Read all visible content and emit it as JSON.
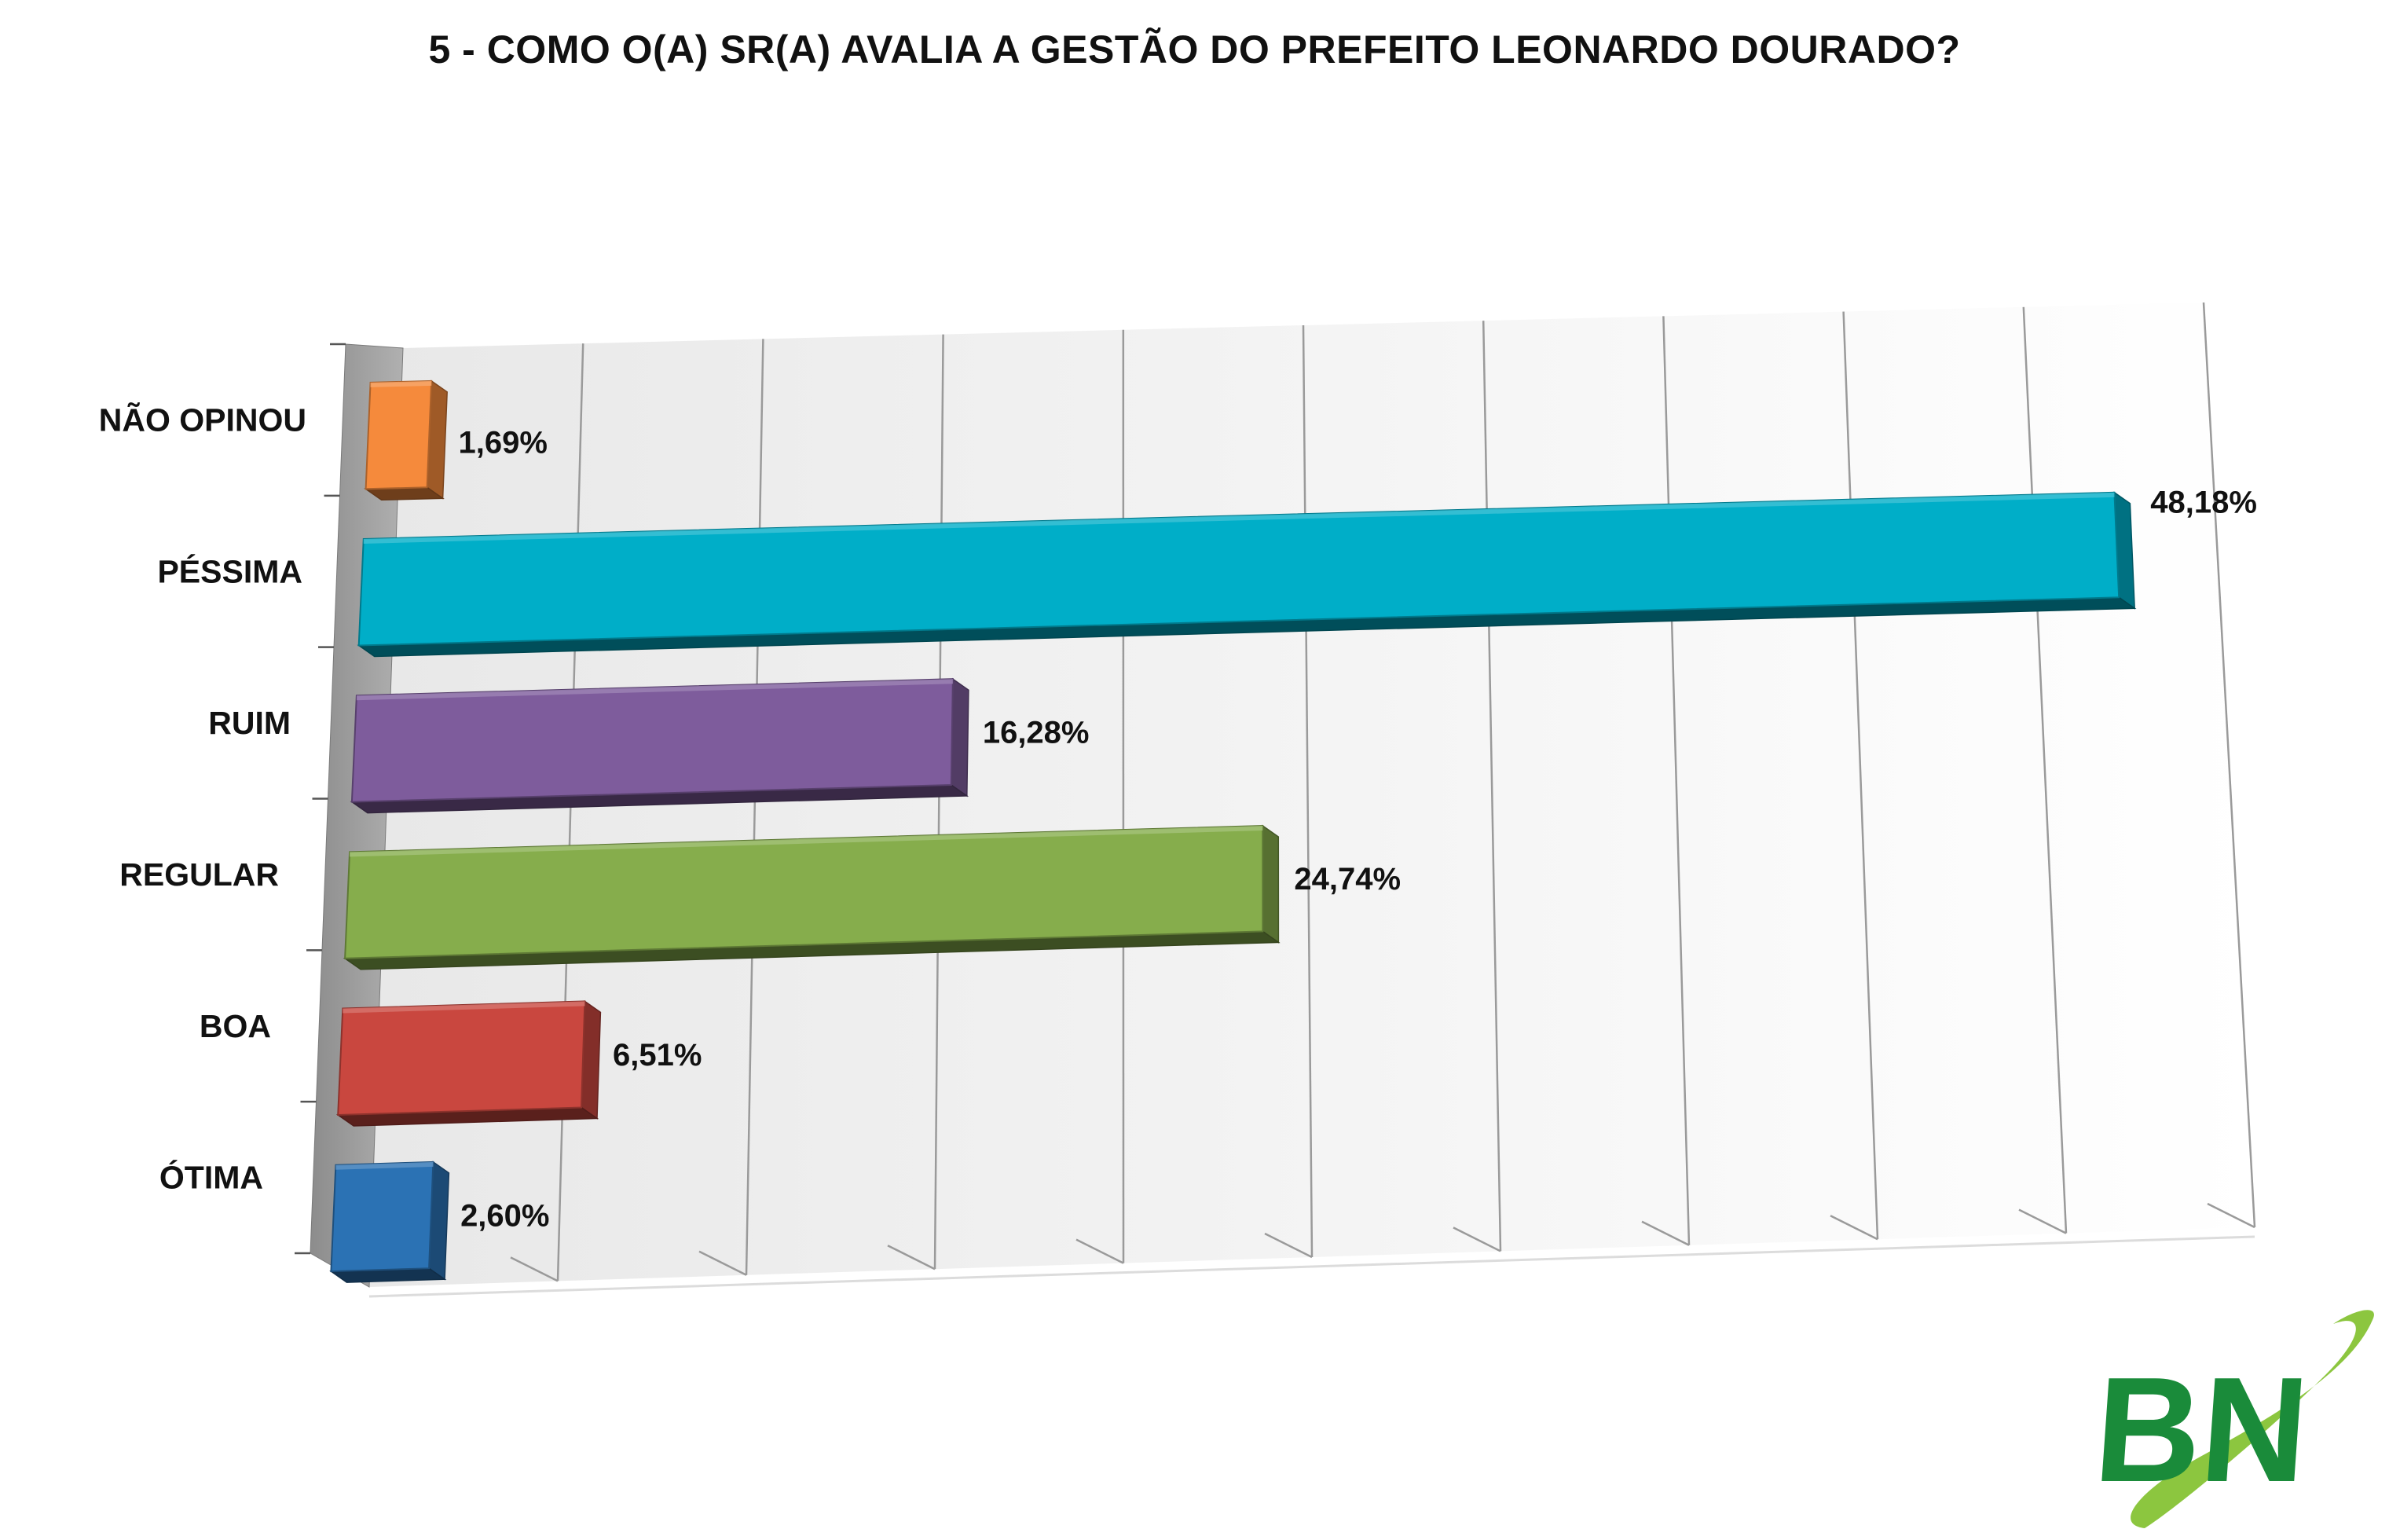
{
  "chart_data": {
    "type": "bar",
    "orientation": "horizontal",
    "style": "3d",
    "title": "5 - COMO O(A) SR(A) AVALIA A GESTÃO DO PREFEITO LEONARDO DOURADO?",
    "xlabel": "",
    "ylabel": "",
    "xlim": [
      0,
      50
    ],
    "grid": true,
    "legend": "none",
    "categories": [
      "NÃO OPINOU",
      "PÉSSIMA",
      "RUIM",
      "REGULAR",
      "BOA",
      "ÓTIMA"
    ],
    "values": [
      1.69,
      48.18,
      16.28,
      24.74,
      6.51,
      2.6
    ],
    "value_labels": [
      "1,69%",
      "48,18%",
      "16,28%",
      "24,74%",
      "6,51%",
      "2,60%"
    ],
    "colors": [
      "#f58a3c",
      "#00aec8",
      "#7e5c9c",
      "#86ad4c",
      "#c9473f",
      "#2b72b4"
    ]
  },
  "logo": {
    "text": "BN",
    "color": "#1a8b3a",
    "swoosh_color": "#8cc63f"
  }
}
